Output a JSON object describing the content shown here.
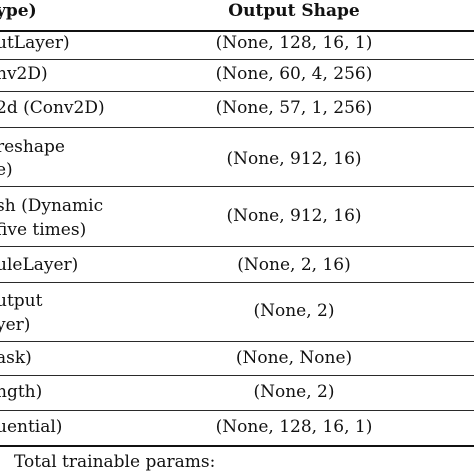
{
  "table": {
    "headers": {
      "layer": "ype)",
      "output_shape": "Output Shape"
    },
    "rows": [
      {
        "layer": [
          "utLayer)"
        ],
        "output_shape": "(None, 128, 16, 1)"
      },
      {
        "layer": [
          "nv2D)"
        ],
        "output_shape": "(None, 60, 4, 256)"
      },
      {
        "layer": [
          "2d (Conv2D)"
        ],
        "output_shape": "(None, 57, 1, 256)"
      },
      {
        "layer": [
          "reshape",
          "e)"
        ],
        "output_shape": "(None, 912, 16)"
      },
      {
        "layer": [
          "sh (Dynamic",
          "five times)"
        ],
        "output_shape": "(None, 912, 16)"
      },
      {
        "layer": [
          "uleLayer)"
        ],
        "output_shape": "(None, 2, 16)"
      },
      {
        "layer": [
          "utput",
          "yer)"
        ],
        "output_shape": "(None, 2)"
      },
      {
        "layer": [
          "ask)"
        ],
        "output_shape": "(None, None)"
      },
      {
        "layer": [
          "ngth)"
        ],
        "output_shape": "(None, 2)"
      },
      {
        "layer": [
          "uential)"
        ],
        "output_shape": "(None, 128, 16, 1)"
      }
    ],
    "footer": "Total trainable params:"
  }
}
